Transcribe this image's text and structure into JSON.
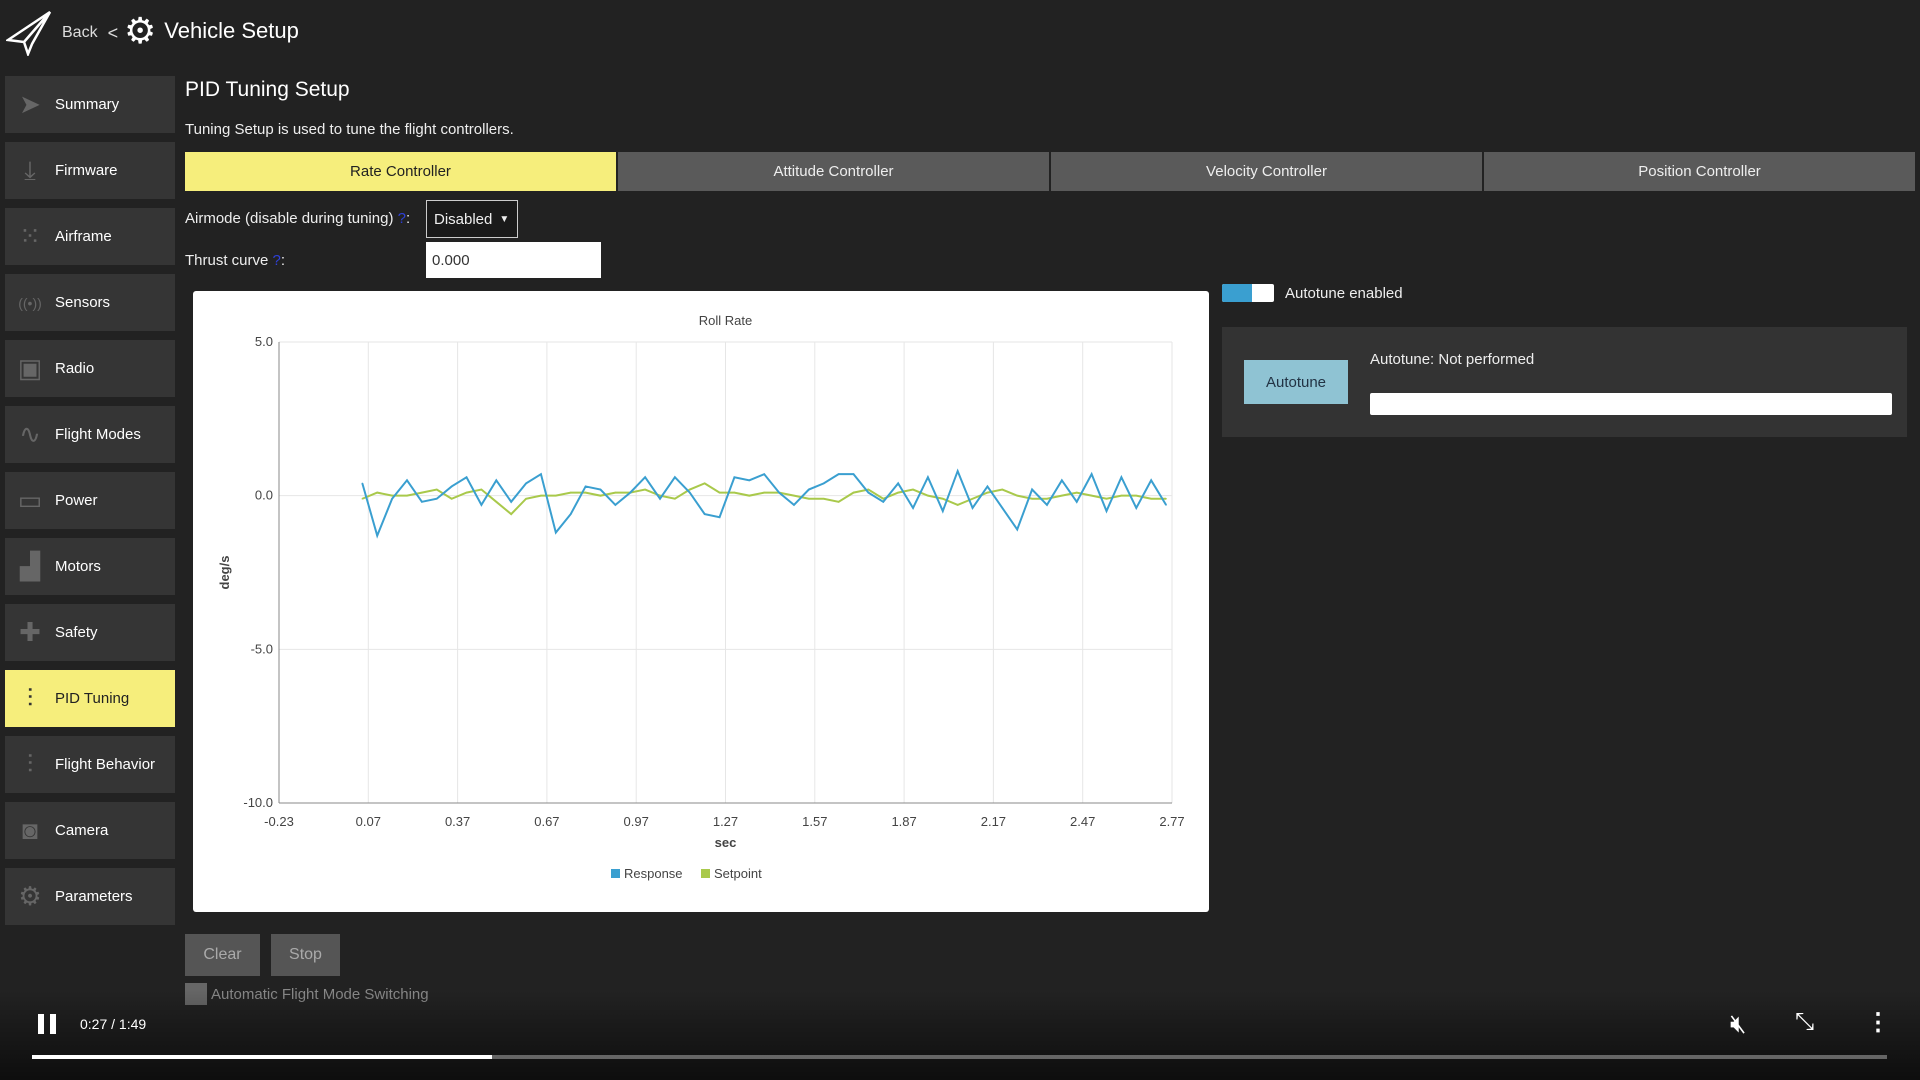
{
  "header": {
    "back_label": "Back",
    "separator": "<",
    "title": "Vehicle Setup"
  },
  "sidebar": {
    "items": [
      {
        "label": "Summary",
        "icon": "paper-plane-icon",
        "glyph": "➤"
      },
      {
        "label": "Firmware",
        "icon": "download-icon",
        "glyph": "⤓"
      },
      {
        "label": "Airframe",
        "icon": "airframe-icon",
        "glyph": "⁙"
      },
      {
        "label": "Sensors",
        "icon": "sensors-icon",
        "glyph": "((•))"
      },
      {
        "label": "Radio",
        "icon": "radio-icon",
        "glyph": "▣"
      },
      {
        "label": "Flight Modes",
        "icon": "flight-modes-icon",
        "glyph": "∿"
      },
      {
        "label": "Power",
        "icon": "power-icon",
        "glyph": "▭"
      },
      {
        "label": "Motors",
        "icon": "motor-icon",
        "glyph": "▟"
      },
      {
        "label": "Safety",
        "icon": "safety-icon",
        "glyph": "✚"
      },
      {
        "label": "PID Tuning",
        "icon": "sliders-icon",
        "glyph": "⫶",
        "active": true
      },
      {
        "label": "Flight Behavior",
        "icon": "sliders-icon",
        "glyph": "⫶"
      },
      {
        "label": "Camera",
        "icon": "camera-icon",
        "glyph": "◙"
      },
      {
        "label": "Parameters",
        "icon": "gears-icon",
        "glyph": "⚙"
      }
    ]
  },
  "page": {
    "title": "PID Tuning Setup",
    "subtitle": "Tuning Setup is used to tune the flight controllers."
  },
  "tabs": [
    {
      "label": "Rate Controller",
      "active": true
    },
    {
      "label": "Attitude Controller"
    },
    {
      "label": "Velocity Controller"
    },
    {
      "label": "Position Controller"
    }
  ],
  "form": {
    "airmode_label": "Airmode (disable during tuning)",
    "airmode_help": "?",
    "colon": ":",
    "airmode_value": "Disabled",
    "thrust_label": "Thrust curve",
    "thrust_help": "?",
    "thrust_value": "0.000"
  },
  "autotune": {
    "toggle_label": "Autotune enabled",
    "toggle_on": true,
    "button_label": "Autotune",
    "status": "Autotune: Not performed",
    "progress": 0
  },
  "buttons": {
    "clear": "Clear",
    "stop": "Stop"
  },
  "auto_switch": {
    "label": "Automatic Flight Mode Switching",
    "checked": false
  },
  "video": {
    "time": "0:27 / 1:49",
    "progress": 0.248
  },
  "colors": {
    "accent": "#f6ee7c",
    "response": "#3a9fd0",
    "setpoint": "#a9c94b"
  },
  "chart_data": {
    "type": "line",
    "title": "Roll Rate",
    "xlabel": "sec",
    "ylabel": "deg/s",
    "xlim": [
      -0.23,
      2.77
    ],
    "ylim": [
      -10,
      5
    ],
    "xticks": [
      "-0.23",
      "0.07",
      "0.37",
      "0.67",
      "0.97",
      "1.27",
      "1.57",
      "1.87",
      "2.17",
      "2.47",
      "2.77"
    ],
    "yticks": [
      "5.0",
      "0.0",
      "-5.0",
      "-10.0"
    ],
    "grid": true,
    "legend": "bottom",
    "x": [
      0.05,
      0.1,
      0.15,
      0.2,
      0.25,
      0.3,
      0.35,
      0.4,
      0.45,
      0.5,
      0.55,
      0.6,
      0.65,
      0.7,
      0.75,
      0.8,
      0.85,
      0.9,
      0.95,
      1.0,
      1.05,
      1.1,
      1.15,
      1.2,
      1.25,
      1.3,
      1.35,
      1.4,
      1.45,
      1.5,
      1.55,
      1.6,
      1.65,
      1.7,
      1.75,
      1.8,
      1.85,
      1.9,
      1.95,
      2.0,
      2.05,
      2.1,
      2.15,
      2.2,
      2.25,
      2.3,
      2.35,
      2.4,
      2.45,
      2.5,
      2.55,
      2.6,
      2.65,
      2.7,
      2.75
    ],
    "series": [
      {
        "name": "Response",
        "values": [
          0.4,
          -1.3,
          -0.1,
          0.5,
          -0.2,
          -0.1,
          0.3,
          0.6,
          -0.3,
          0.5,
          -0.2,
          0.4,
          0.7,
          -1.2,
          -0.6,
          0.3,
          0.2,
          -0.3,
          0.1,
          0.6,
          -0.1,
          0.6,
          0.1,
          -0.6,
          -0.7,
          0.6,
          0.5,
          0.7,
          0.1,
          -0.3,
          0.2,
          0.4,
          0.7,
          0.7,
          0.1,
          -0.2,
          0.4,
          -0.4,
          0.6,
          -0.5,
          0.8,
          -0.4,
          0.3,
          -0.4,
          -1.1,
          0.2,
          -0.3,
          0.5,
          -0.2,
          0.7,
          -0.5,
          0.6,
          -0.4,
          0.5,
          -0.3
        ]
      },
      {
        "name": "Setpoint",
        "values": [
          -0.1,
          0.1,
          0.0,
          0.0,
          0.1,
          0.2,
          -0.1,
          0.1,
          0.2,
          -0.2,
          -0.6,
          -0.1,
          0.0,
          0.0,
          0.1,
          0.1,
          0.0,
          0.1,
          0.1,
          0.2,
          0.0,
          -0.1,
          0.2,
          0.4,
          0.1,
          0.1,
          0.0,
          0.1,
          0.1,
          0.0,
          -0.1,
          -0.1,
          -0.2,
          0.1,
          0.2,
          -0.1,
          0.1,
          0.2,
          0.0,
          -0.1,
          -0.3,
          -0.1,
          0.1,
          0.2,
          0.0,
          -0.1,
          -0.1,
          0.0,
          0.1,
          0.0,
          -0.1,
          0.0,
          0.0,
          -0.1,
          -0.1
        ]
      }
    ]
  }
}
